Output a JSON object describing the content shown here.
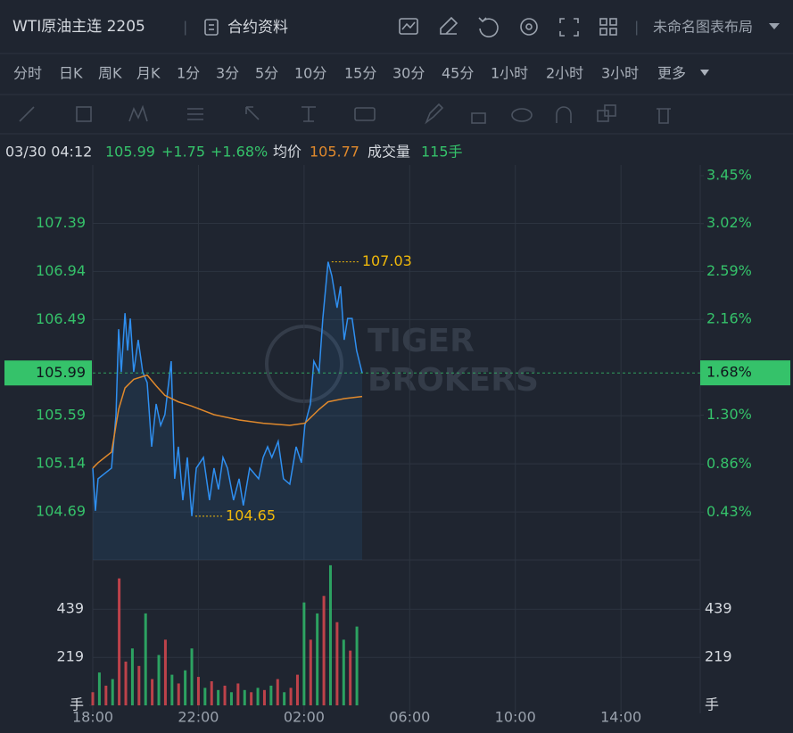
{
  "header": {
    "title": "WTI原油主连 2205",
    "info_button": "合约资料",
    "layout_name": "未命名图表布局"
  },
  "periods": [
    "分时",
    "日K",
    "周K",
    "月K",
    "1分",
    "3分",
    "5分",
    "10分",
    "15分",
    "30分",
    "45分",
    "1小时",
    "2小时",
    "3小时"
  ],
  "more": "更多",
  "info": {
    "time": "03/30 04:12",
    "price": "105.99",
    "change": "+1.75",
    "percent": "+1.68%",
    "avg_label": "均价",
    "avg": "105.77",
    "volume_label": "成交量",
    "volume": "115手"
  },
  "watermark": [
    "TIGER",
    "BROKERS"
  ],
  "chart_data": {
    "type": "line",
    "xlim": [
      0,
      23
    ],
    "xticks": [
      {
        "value": 0,
        "label": "18:00"
      },
      {
        "value": 4,
        "label": "22:00"
      },
      {
        "value": 8,
        "label": "02:00"
      },
      {
        "value": 12,
        "label": "06:00"
      },
      {
        "value": 16,
        "label": "10:00"
      },
      {
        "value": 20,
        "label": "14:00"
      }
    ],
    "ylim": [
      104.24,
      107.836
    ],
    "yticks": [
      104.69,
      105.14,
      105.59,
      106.49,
      106.94,
      107.39
    ],
    "y2lim": [
      0,
      3.45
    ],
    "y2ticks": [
      {
        "value": 0.43,
        "label": "0.43%"
      },
      {
        "value": 0.86,
        "label": "0.86%"
      },
      {
        "value": 1.3,
        "label": "1.30%"
      },
      {
        "value": 2.16,
        "label": "2.16%"
      },
      {
        "value": 2.59,
        "label": "2.59%"
      },
      {
        "value": 3.02,
        "label": "3.02%"
      },
      {
        "value": 3.45,
        "label": "3.45%"
      }
    ],
    "series": [
      {
        "color": "#2f8ff0",
        "x": [
          0,
          0.1,
          0.2,
          0.71,
          0.88,
          0.98,
          1.08,
          1.22,
          1.32,
          1.42,
          1.55,
          1.72,
          1.89,
          2.06,
          2.23,
          2.4,
          2.57,
          2.73,
          2.97,
          3.1,
          3.24,
          3.41,
          3.58,
          3.75,
          3.92,
          4.19,
          4.42,
          4.59,
          4.76,
          4.93,
          5.1,
          5.33,
          5.54,
          5.7,
          5.94,
          6.28,
          6.45,
          6.62,
          6.78,
          7.02,
          7.22,
          7.46,
          7.7,
          7.9,
          8.03,
          8.24,
          8.37,
          8.57,
          8.71,
          8.91,
          9.05,
          9.25,
          9.38,
          9.52,
          9.65,
          9.82,
          9.99,
          10.2
        ],
        "values": [
          105.1,
          104.7,
          105.0,
          105.1,
          105.6,
          106.4,
          106.0,
          106.55,
          106.2,
          106.5,
          106.0,
          106.3,
          106.0,
          105.9,
          105.3,
          105.7,
          105.5,
          105.6,
          106.1,
          105.0,
          105.3,
          104.8,
          105.2,
          104.65,
          105.1,
          105.2,
          104.8,
          105.1,
          104.9,
          105.2,
          105.1,
          104.8,
          105.0,
          104.75,
          105.1,
          105.0,
          105.2,
          105.3,
          105.2,
          105.35,
          105.0,
          104.95,
          105.3,
          105.15,
          105.5,
          105.7,
          106.1,
          106.0,
          106.5,
          107.03,
          106.9,
          106.6,
          106.8,
          106.3,
          106.5,
          106.5,
          106.2,
          105.99
        ]
      },
      {
        "color": "#e0892c",
        "x": [
          0,
          0.2,
          0.71,
          0.98,
          1.22,
          1.55,
          2.06,
          2.4,
          2.73,
          3.24,
          3.75,
          4.59,
          5.54,
          6.45,
          7.46,
          8.03,
          8.57,
          8.91,
          9.52,
          10.2
        ],
        "values": [
          105.1,
          105.15,
          105.25,
          105.65,
          105.85,
          105.93,
          105.97,
          105.87,
          105.78,
          105.72,
          105.68,
          105.6,
          105.55,
          105.52,
          105.5,
          105.52,
          105.65,
          105.72,
          105.75,
          105.77
        ]
      }
    ],
    "annotations": [
      {
        "x": 8.91,
        "value": 107.03
      },
      {
        "x": 3.75,
        "value": 104.65
      }
    ],
    "last": {
      "value": 105.99,
      "pct": {
        "value": 1.68,
        "label": "1.68%"
      }
    },
    "volume": {
      "ylim": [
        0,
        664
      ],
      "yticks": [
        {
          "value": 0,
          "label": "手"
        },
        219,
        439
      ],
      "x": [
        0,
        0.25,
        0.5,
        0.75,
        1,
        1.25,
        1.5,
        1.75,
        2,
        2.25,
        2.5,
        2.75,
        3,
        3.25,
        3.5,
        3.75,
        4,
        4.25,
        4.5,
        4.75,
        5,
        5.25,
        5.5,
        5.75,
        6,
        6.25,
        6.5,
        6.75,
        7,
        7.25,
        7.5,
        7.75,
        8,
        8.25,
        8.5,
        8.75,
        9,
        9.25,
        9.5,
        9.75,
        10
      ],
      "values": [
        60,
        150,
        90,
        120,
        580,
        200,
        260,
        180,
        420,
        120,
        230,
        300,
        140,
        100,
        160,
        260,
        130,
        80,
        110,
        70,
        90,
        60,
        100,
        70,
        60,
        80,
        70,
        90,
        120,
        60,
        80,
        140,
        470,
        300,
        420,
        500,
        640,
        380,
        300,
        250,
        360
      ],
      "colors": [
        "#d9484f",
        "#2fb86a",
        "#d9484f",
        "#2fb86a",
        "#d9484f",
        "#d9484f",
        "#2fb86a",
        "#d9484f",
        "#2fb86a",
        "#d9484f",
        "#2fb86a",
        "#d9484f",
        "#2fb86a",
        "#d9484f",
        "#2fb86a",
        "#2fb86a",
        "#d9484f",
        "#2fb86a",
        "#d9484f",
        "#2fb86a",
        "#d9484f",
        "#2fb86a",
        "#d9484f",
        "#2fb86a",
        "#d9484f",
        "#2fb86a",
        "#d9484f",
        "#2fb86a",
        "#d9484f",
        "#2fb86a",
        "#d9484f",
        "#d9484f",
        "#2fb86a",
        "#d9484f",
        "#2fb86a",
        "#d9484f",
        "#2fb86a",
        "#d9484f",
        "#2fb86a",
        "#d9484f",
        "#2fb86a"
      ]
    }
  }
}
